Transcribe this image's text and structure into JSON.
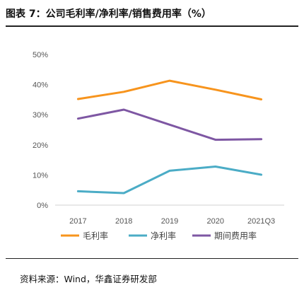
{
  "header": {
    "title": "图表 7：公司毛利率/净利率/销售费用率（%）"
  },
  "footer": {
    "source": "资料来源：Wind，华鑫证券研发部"
  },
  "chart_data": {
    "type": "line",
    "categories": [
      "2017",
      "2018",
      "2019",
      "2020",
      "2021Q3"
    ],
    "ylim": [
      0,
      50
    ],
    "yticks": [
      "0%",
      "10%",
      "20%",
      "30%",
      "40%",
      "50%"
    ],
    "grid": false,
    "legend_position": "bottom",
    "series": [
      {
        "name": "毛利率",
        "color": "#F7941D",
        "values": [
          35.2,
          37.6,
          41.3,
          38.3,
          35.1
        ]
      },
      {
        "name": "净利率",
        "color": "#4BACC6",
        "values": [
          4.6,
          4.0,
          11.4,
          12.8,
          10.1
        ]
      },
      {
        "name": "期间费用率",
        "color": "#7E57A3",
        "values": [
          28.7,
          31.7,
          26.7,
          21.7,
          21.9
        ]
      }
    ]
  }
}
